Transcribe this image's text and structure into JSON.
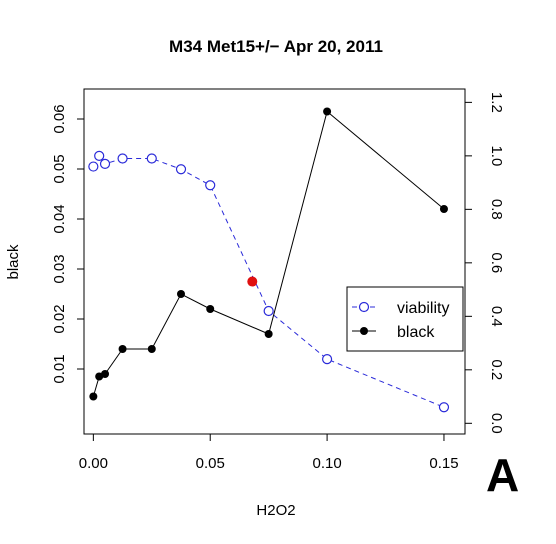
{
  "chart_data": {
    "type": "line",
    "title": "M34 Met15+/− Apr 20, 2011",
    "xlabel": "H2O2",
    "ylabel": "black",
    "xlim": [
      -0.004,
      0.159
    ],
    "ylim_left": [
      -0.003,
      0.066
    ],
    "ylim_right": [
      -0.04,
      1.25
    ],
    "x_ticks": [
      0.0,
      0.05,
      0.1,
      0.15
    ],
    "x_tick_labels": [
      "0.00",
      "0.05",
      "0.10",
      "0.15"
    ],
    "y_left_ticks": [
      0.01,
      0.02,
      0.03,
      0.04,
      0.05,
      0.06
    ],
    "y_left_tick_labels": [
      "0.01",
      "0.02",
      "0.03",
      "0.04",
      "0.05",
      "0.06"
    ],
    "y_right_ticks": [
      0.0,
      0.2,
      0.4,
      0.6,
      0.8,
      1.0,
      1.2
    ],
    "y_right_tick_labels": [
      "0.0",
      "0.2",
      "0.4",
      "0.6",
      "0.8",
      "1.0",
      "1.2"
    ],
    "grid": false,
    "legend_position": "right",
    "series": [
      {
        "name": "viability",
        "axis": "right",
        "color": "#2b2bd9",
        "line_style": "dashed",
        "marker": "open-circle",
        "x": [
          0.0,
          0.0025,
          0.005,
          0.0125,
          0.025,
          0.0375,
          0.05,
          0.075,
          0.1,
          0.15
        ],
        "y": [
          0.96,
          1.0,
          0.97,
          0.99,
          0.99,
          0.95,
          0.89,
          0.42,
          0.24,
          0.06
        ]
      },
      {
        "name": "black",
        "axis": "left",
        "color": "#000000",
        "line_style": "solid",
        "marker": "filled-circle",
        "x": [
          0.0,
          0.0025,
          0.005,
          0.0125,
          0.025,
          0.0375,
          0.05,
          0.075,
          0.1,
          0.15
        ],
        "y": [
          0.0045,
          0.0085,
          0.009,
          0.014,
          0.014,
          0.025,
          0.022,
          0.017,
          0.0615,
          0.042
        ]
      }
    ],
    "highlight_point": {
      "x": 0.068,
      "y_right": 0.53,
      "color": "#e01010"
    }
  },
  "panel_label": "A"
}
